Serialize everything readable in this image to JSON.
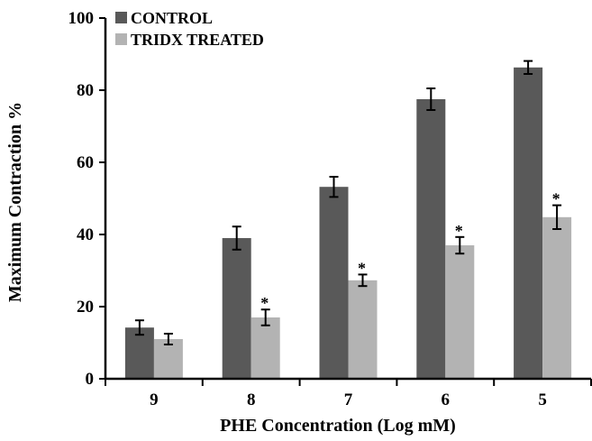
{
  "chart_data": {
    "type": "bar",
    "title": "",
    "xlabel": "PHE Concentration  (Log mM)",
    "ylabel": "Maximum Contraction %",
    "categories": [
      "9",
      "8",
      "7",
      "6",
      "5"
    ],
    "ylim": [
      0,
      100
    ],
    "yticks": [
      "0",
      "20",
      "40",
      "60",
      "80",
      "100"
    ],
    "grid": false,
    "legend_position": "top-left",
    "series": [
      {
        "name": "CONTROL",
        "color": "#595959",
        "values": [
          14.2,
          39.0,
          53.2,
          77.5,
          86.3
        ],
        "errors": [
          2.0,
          3.2,
          2.8,
          3.0,
          1.8
        ],
        "significance": [
          "",
          "",
          "",
          "",
          ""
        ]
      },
      {
        "name": "TRIDX TREATED",
        "color": "#b3b3b3",
        "values": [
          11.0,
          17.0,
          27.3,
          37.0,
          44.8
        ],
        "errors": [
          1.5,
          2.2,
          1.6,
          2.3,
          3.3
        ],
        "significance": [
          "",
          "*",
          "*",
          "*",
          "*"
        ]
      }
    ]
  }
}
